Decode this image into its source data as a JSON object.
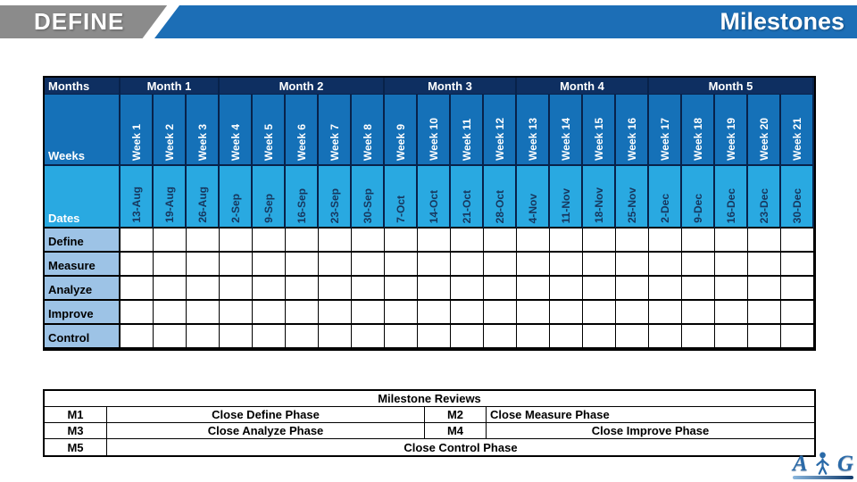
{
  "banner": {
    "phase_label": "DEFINE",
    "slide_title": "Milestones"
  },
  "colors": {
    "banner_gray": "#8b8b8b",
    "banner_blue": "#1c6eb6",
    "header_navy": "#0e2f61",
    "navy_border": "#08224a",
    "week_blue": "#1571b8",
    "date_blue": "#29a9e1",
    "phase_label_blue": "#9dc3e6",
    "date_text": "#17375e"
  },
  "timeline": {
    "months_label": "Months",
    "weeks_label": "Weeks",
    "dates_label": "Dates",
    "months": [
      {
        "label": "Month 1",
        "weeks": 3
      },
      {
        "label": "Month 2",
        "weeks": 5
      },
      {
        "label": "Month 3",
        "weeks": 4
      },
      {
        "label": "Month 4",
        "weeks": 4
      },
      {
        "label": "Month 5",
        "weeks": 5
      }
    ],
    "weeks": [
      "Week 1",
      "Week 2",
      "Week 3",
      "Week 4",
      "Week 5",
      "Week 6",
      "Week 7",
      "Week 8",
      "Week 9",
      "Week 10",
      "Week 11",
      "Week 12",
      "Week 13",
      "Week 14",
      "Week 15",
      "Week 16",
      "Week 17",
      "Week 18",
      "Week 19",
      "Week 20",
      "Week 21"
    ],
    "dates": [
      "13-Aug",
      "19-Aug",
      "26-Aug",
      "2-Sep",
      "9-Sep",
      "16-Sep",
      "23-Sep",
      "30-Sep",
      "7-Oct",
      "14-Oct",
      "21-Oct",
      "28-Oct",
      "4-Nov",
      "11-Nov",
      "18-Nov",
      "25-Nov",
      "2-Dec",
      "9-Dec",
      "16-Dec",
      "23-Dec",
      "30-Dec"
    ],
    "phases": [
      "Define",
      "Measure",
      "Analyze",
      "Improve",
      "Control"
    ]
  },
  "milestone_reviews": {
    "title": "Milestone Reviews",
    "rows": [
      [
        {
          "text": "M1",
          "align": "center"
        },
        {
          "text": "Close Define Phase",
          "align": "center"
        },
        {
          "text": "M2",
          "align": "center"
        },
        {
          "text": "Close Measure Phase",
          "align": "left"
        }
      ],
      [
        {
          "text": "M3",
          "align": "center"
        },
        {
          "text": "Close Analyze Phase",
          "align": "center"
        },
        {
          "text": "M4",
          "align": "center"
        },
        {
          "text": "Close Improve Phase",
          "align": "center"
        }
      ],
      [
        {
          "text": "M5",
          "align": "center"
        },
        {
          "text": "Close Control Phase",
          "align": "center",
          "span": 3
        }
      ]
    ]
  },
  "logo": {
    "letter_a": "A",
    "letter_g": "G"
  }
}
